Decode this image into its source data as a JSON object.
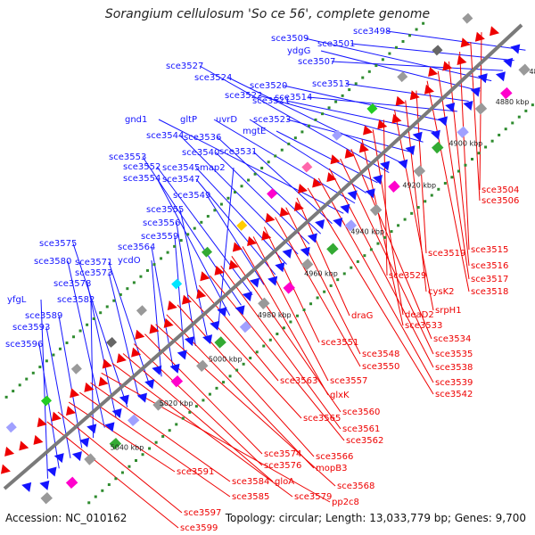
{
  "title": "Sorangium cellulosum 'So ce 56', complete genome",
  "footer": {
    "accession": "Accession: NC_010162",
    "summary": "Topology: circular; Length: 13,033,779 bp; Genes: 9,700"
  },
  "colors": {
    "forward": "#1414ff",
    "reverse": "#ee0000",
    "backbone": "#7a7a7a",
    "tick": "#2e8b2e"
  },
  "kbp_labels": [
    "4860 kbp",
    "4880 kbp",
    "4900 kbp",
    "4920 kbp",
    "4940 kbp",
    "4960 kbp",
    "4980 kbp",
    "5000 kbp",
    "5020 kbp",
    "5040 kbp"
  ],
  "forward_genes": [
    "sce3498",
    "sce3501",
    "sce3507",
    "sce3509",
    "ydgG",
    "sce3513",
    "sce3514",
    "sce3520",
    "sce3521",
    "sce3522",
    "sce3523",
    "sce3524",
    "sce3527",
    "mgtE",
    "uvrD",
    "gltP",
    "gnd1",
    "sce3531",
    "sce3536",
    "sce3540",
    "sce3544",
    "sce3545",
    "sce3547",
    "sce3549",
    "sce3552",
    "sce3553",
    "sce3554",
    "map2",
    "sce3555",
    "sce3556",
    "sce3559",
    "sce3564",
    "ycdO",
    "sce3571",
    "sce3573",
    "sce3575",
    "sce3578",
    "sce3580",
    "sce3582",
    "sce3589",
    "sce3593",
    "sce3596",
    "yfgL"
  ],
  "reverse_genes": [
    "sce3504",
    "sce3506",
    "sce3515",
    "sce3516",
    "sce3517",
    "sce3518",
    "sce3519",
    "cysK2",
    "srpH1",
    "sce3529",
    "deaD2",
    "sce3533",
    "sce3534",
    "sce3535",
    "sce3538",
    "sce3539",
    "sce3542",
    "draG",
    "sce3548",
    "sce3550",
    "sce3551",
    "sce3557",
    "glxK",
    "sce3560",
    "sce3561",
    "sce3562",
    "sce3563",
    "sce3565",
    "sce3566",
    "mopB3",
    "sce3568",
    "sce3574",
    "sce3576",
    "gloA",
    "sce3579",
    "pp2c8",
    "sce3584",
    "sce3585",
    "sce3591",
    "sce3597",
    "sce3599"
  ]
}
